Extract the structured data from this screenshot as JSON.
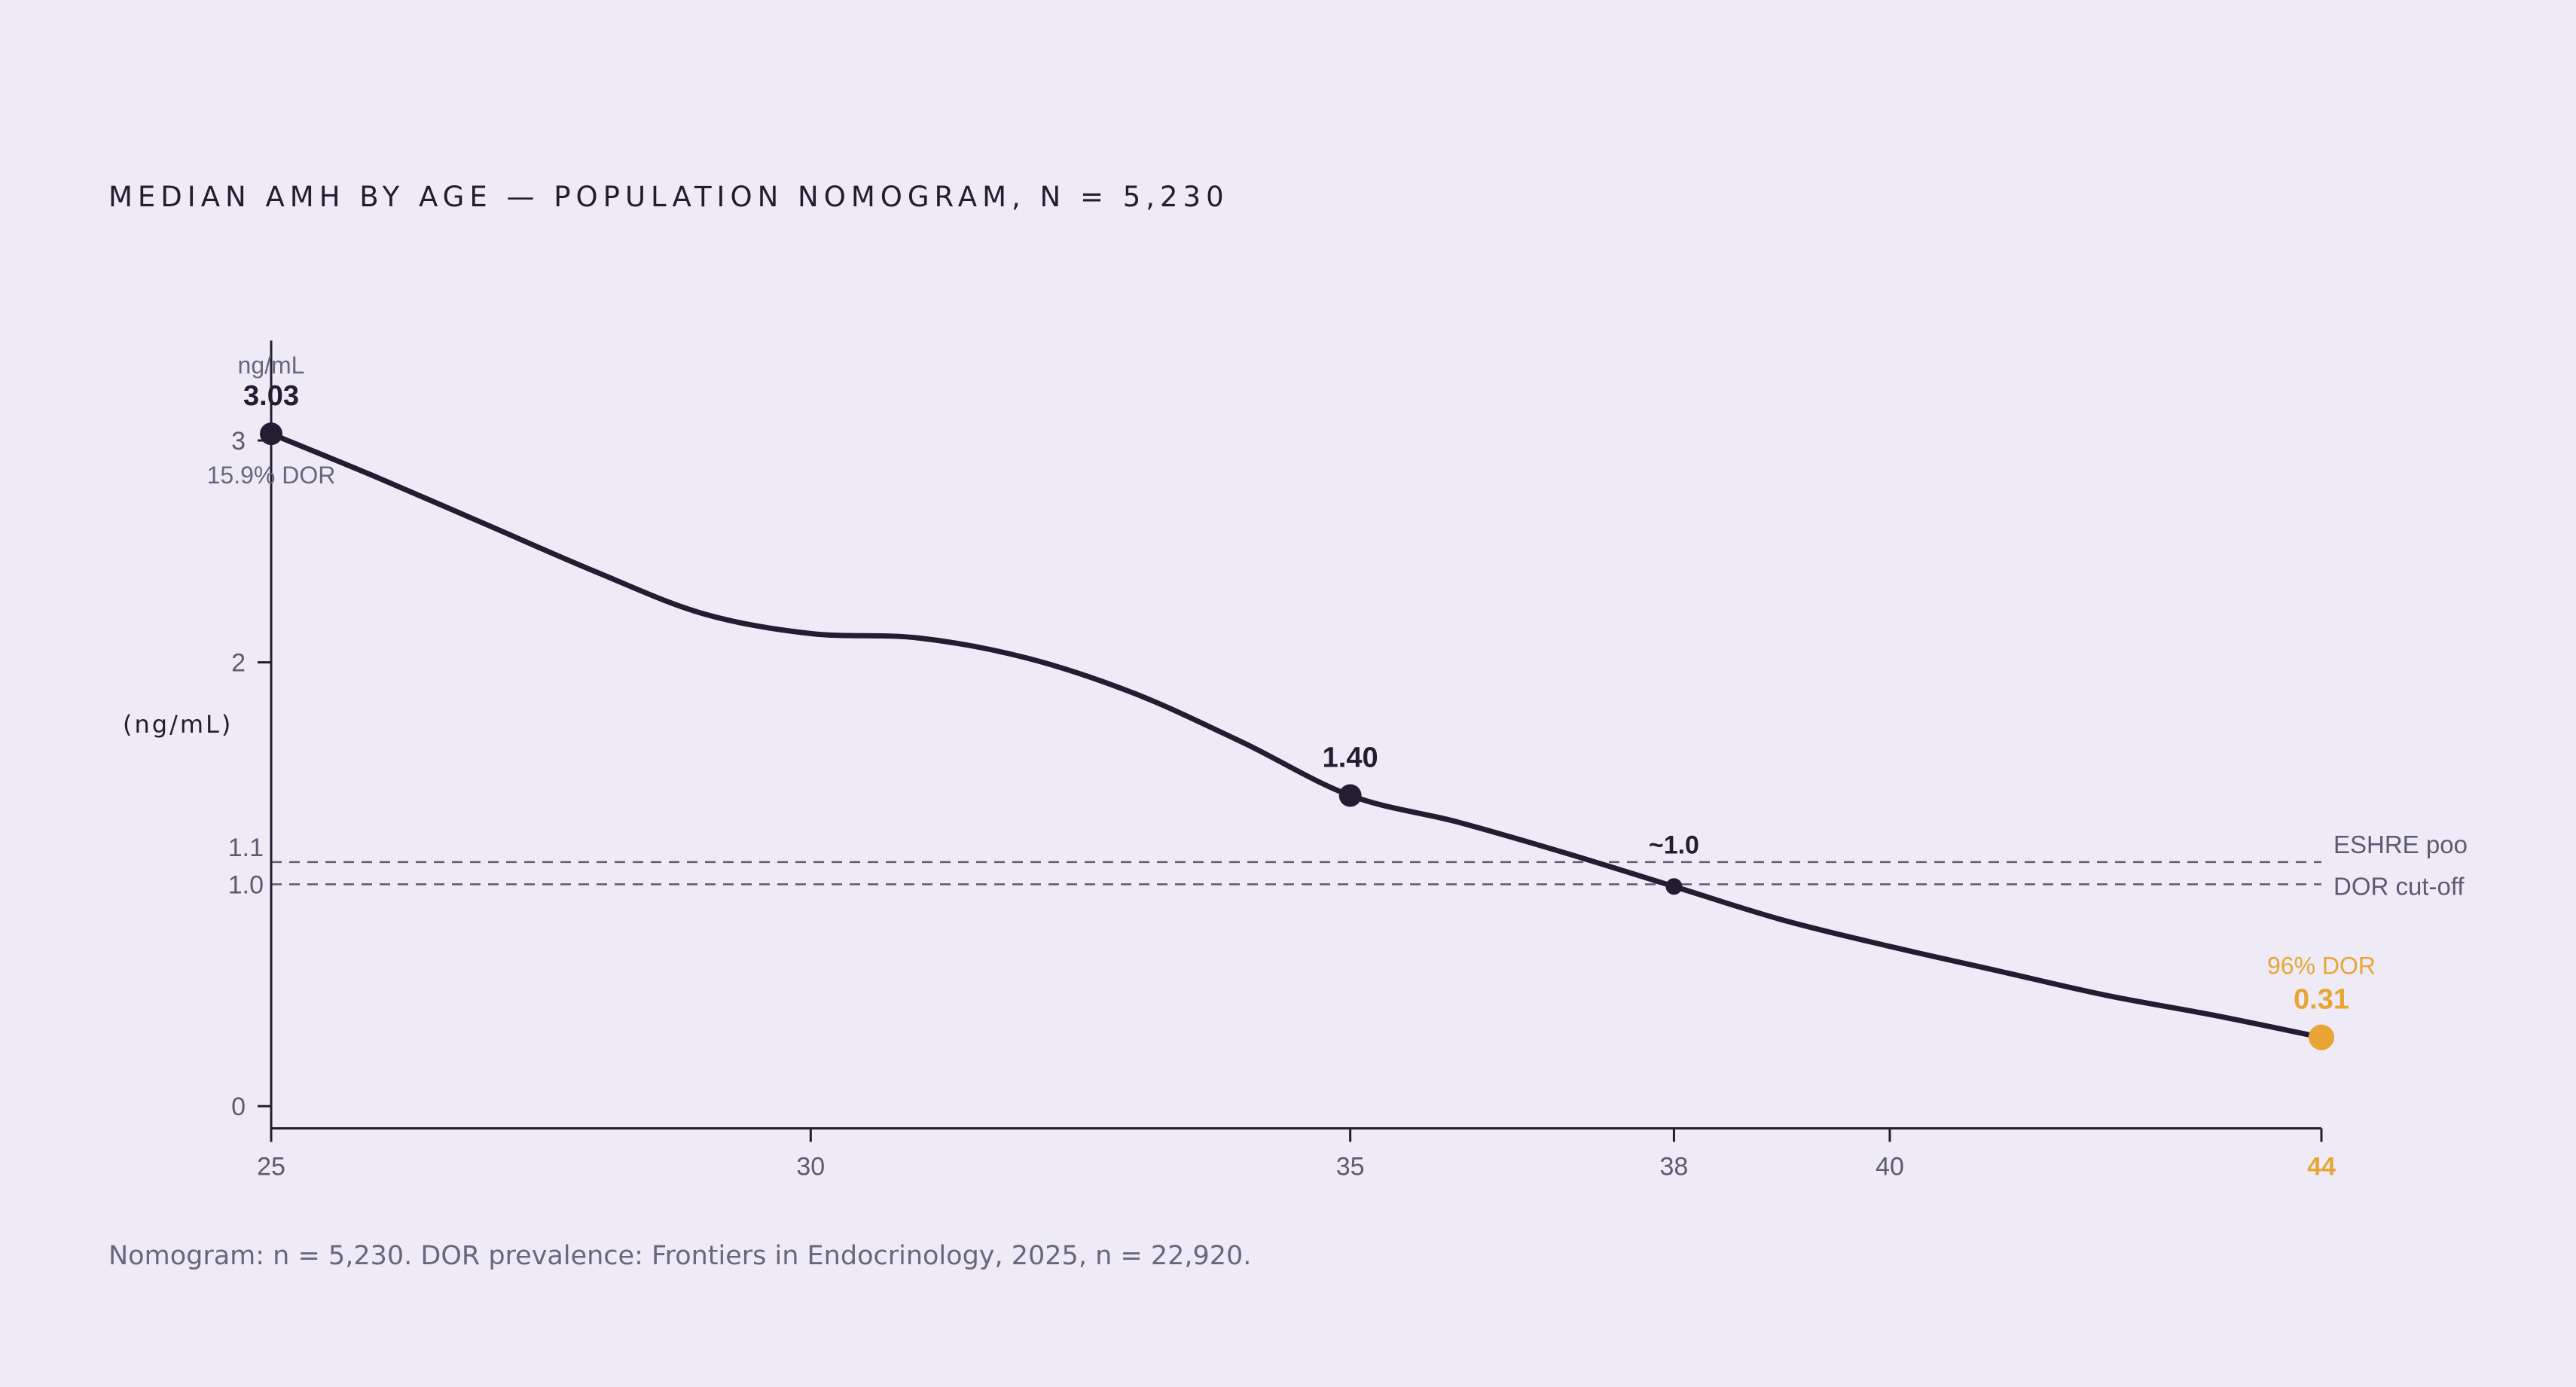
{
  "title": "MEDIAN AMH BY AGE — POPULATION NOMOGRAM, N = 5,230",
  "source": "Nomogram: n = 5,230. DOR prevalence: Frontiers in Endocrinology, 2025, n = 22,920.",
  "colors": {
    "line": "#221d30",
    "accent": "#e8a535",
    "axis": "#221d30",
    "tick_text": "#5f5a72",
    "reference": "#5f5a72"
  },
  "chart_data": {
    "type": "line",
    "title": "MEDIAN AMH BY AGE — POPULATION NOMOGRAM, N = 5,230",
    "xlabel": "",
    "ylabel": "(ng/mL)",
    "y_unit": "ng/mL",
    "xlim": [
      25,
      44
    ],
    "ylim": [
      -0.1,
      3.45
    ],
    "x_ticks": [
      {
        "value": 25,
        "label": "25"
      },
      {
        "value": 30,
        "label": "30"
      },
      {
        "value": 35,
        "label": "35"
      },
      {
        "value": 38,
        "label": "38"
      },
      {
        "value": 40,
        "label": "40"
      },
      {
        "value": 44,
        "label": "44",
        "highlight": true
      }
    ],
    "y_ticks": [
      {
        "value": 0,
        "label": "0"
      },
      {
        "value": 1.0,
        "label": "1.0"
      },
      {
        "value": 1.1,
        "label": "1.1"
      },
      {
        "value": 2,
        "label": "2"
      },
      {
        "value": 3,
        "label": "3"
      }
    ],
    "series": [
      {
        "x": [
          25,
          26,
          27,
          28,
          29,
          30,
          31,
          32,
          33,
          34,
          35,
          36,
          37,
          38,
          39,
          40,
          41,
          42,
          43,
          44
        ],
        "values": [
          3.03,
          2.83,
          2.62,
          2.41,
          2.22,
          2.13,
          2.11,
          2.02,
          1.86,
          1.64,
          1.4,
          1.28,
          1.14,
          0.99,
          0.84,
          0.72,
          0.61,
          0.5,
          0.41,
          0.31
        ]
      }
    ],
    "reference_lines": [
      {
        "value": 1.1,
        "label": "ESHRE poo"
      },
      {
        "value": 1.0,
        "label": "DOR cut-off"
      }
    ],
    "annotations": [
      {
        "x": 25,
        "y": 3.03,
        "label": "3.03",
        "unit": "ng/mL",
        "sub": "15.9% DOR",
        "style": "dark"
      },
      {
        "x": 35,
        "y": 1.4,
        "label": "1.40",
        "style": "dark"
      },
      {
        "x": 38,
        "y": 0.99,
        "label": "~1.0",
        "style": "dark-small"
      },
      {
        "x": 44,
        "y": 0.31,
        "label": "0.31",
        "sub": "96% DOR",
        "style": "accent"
      }
    ],
    "grid": false,
    "legend": "none"
  }
}
